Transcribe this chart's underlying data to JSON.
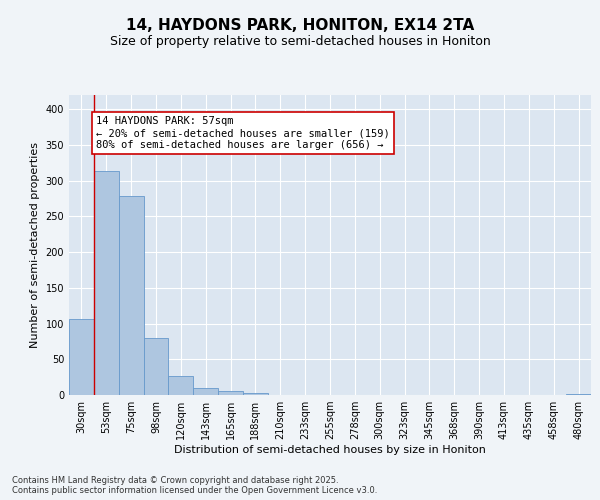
{
  "title_line1": "14, HAYDONS PARK, HONITON, EX14 2TA",
  "title_line2": "Size of property relative to semi-detached houses in Honiton",
  "xlabel": "Distribution of semi-detached houses by size in Honiton",
  "ylabel": "Number of semi-detached properties",
  "footnote": "Contains HM Land Registry data © Crown copyright and database right 2025.\nContains public sector information licensed under the Open Government Licence v3.0.",
  "bar_labels": [
    "30sqm",
    "53sqm",
    "75sqm",
    "98sqm",
    "120sqm",
    "143sqm",
    "165sqm",
    "188sqm",
    "210sqm",
    "233sqm",
    "255sqm",
    "278sqm",
    "300sqm",
    "323sqm",
    "345sqm",
    "368sqm",
    "390sqm",
    "413sqm",
    "435sqm",
    "458sqm",
    "480sqm"
  ],
  "bar_values": [
    107,
    313,
    278,
    80,
    27,
    10,
    5,
    3,
    0,
    0,
    0,
    0,
    0,
    0,
    0,
    0,
    0,
    0,
    0,
    0,
    2
  ],
  "bar_color": "#aec6e0",
  "bar_edge_color": "#6699cc",
  "property_bin_index": 1,
  "property_label": "14 HAYDONS PARK: 57sqm",
  "pct_smaller": 20,
  "count_smaller": 159,
  "pct_larger": 80,
  "count_larger": 656,
  "vline_color": "#cc0000",
  "annotation_box_color": "#cc0000",
  "ylim": [
    0,
    420
  ],
  "yticks": [
    0,
    50,
    100,
    150,
    200,
    250,
    300,
    350,
    400
  ],
  "plot_bg_color": "#dce6f1",
  "grid_color": "#ffffff",
  "fig_bg_color": "#f0f4f8",
  "title_fontsize": 11,
  "subtitle_fontsize": 9,
  "axis_label_fontsize": 8,
  "tick_fontsize": 7,
  "annotation_fontsize": 7.5,
  "footnote_fontsize": 6
}
